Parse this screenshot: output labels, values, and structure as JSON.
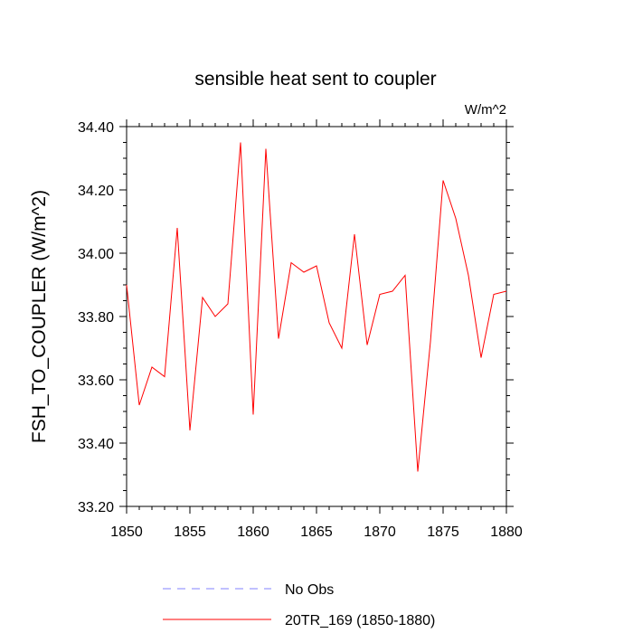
{
  "chart_data": {
    "type": "line",
    "title": "sensible heat sent to coupler",
    "units": "W/m^2",
    "xlabel": "",
    "ylabel": "FSH_TO_COUPLER  (W/m^2)",
    "xlim": [
      1850,
      1880
    ],
    "ylim": [
      33.2,
      34.4
    ],
    "x_ticks": [
      "1850",
      "1855",
      "1860",
      "1865",
      "1870",
      "1875",
      "1880"
    ],
    "y_ticks": [
      "33.20",
      "33.40",
      "33.60",
      "33.80",
      "34.00",
      "34.20",
      "34.40"
    ],
    "grid": false,
    "legend_position": "bottom",
    "series": [
      {
        "name": "20TR_169 (1850-1880)",
        "color": "#ff0000",
        "style": "solid",
        "x": [
          1850,
          1851,
          1852,
          1853,
          1854,
          1855,
          1856,
          1857,
          1858,
          1859,
          1860,
          1861,
          1862,
          1863,
          1864,
          1865,
          1866,
          1867,
          1868,
          1869,
          1870,
          1871,
          1872,
          1873,
          1874,
          1875,
          1876,
          1877,
          1878,
          1879,
          1880
        ],
        "values": [
          33.9,
          33.52,
          33.64,
          33.61,
          34.08,
          33.44,
          33.86,
          33.8,
          33.84,
          34.35,
          33.49,
          34.33,
          33.73,
          33.97,
          33.94,
          33.96,
          33.78,
          33.7,
          34.06,
          33.71,
          33.87,
          33.88,
          33.93,
          33.31,
          33.72,
          34.23,
          34.11,
          33.93,
          33.67,
          33.87,
          33.88
        ]
      }
    ],
    "legend": [
      {
        "label": "No Obs",
        "color": "#8080ff",
        "style": "dashed"
      },
      {
        "label": "20TR_169 (1850-1880)",
        "color": "#ff0000",
        "style": "solid"
      }
    ]
  }
}
